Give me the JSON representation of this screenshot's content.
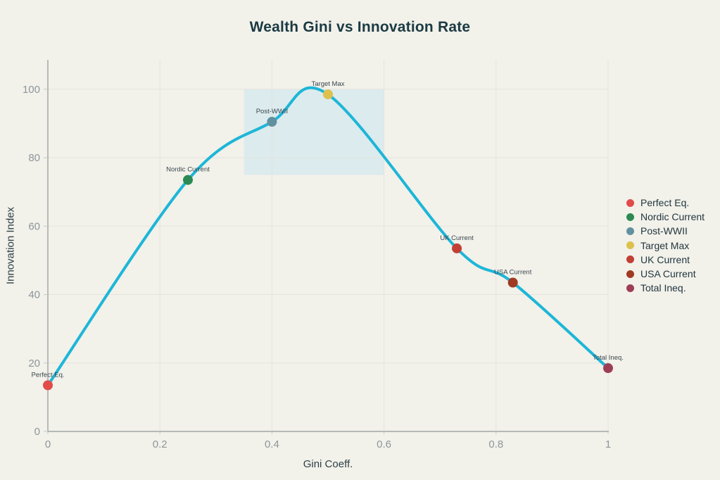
{
  "chart_data": {
    "type": "line",
    "title": "Wealth Gini vs Innovation Rate",
    "xlabel": "Gini Coeff.",
    "ylabel": "Innovation Index",
    "xlim": [
      0,
      1
    ],
    "ylim": [
      0,
      108.6
    ],
    "grid": true,
    "legend_position": "right",
    "background": "#f2f1ea",
    "line_color": "#1db6d8",
    "grid_color": "#e4e4dd",
    "axis_color": "#8f9898",
    "tick_color": "#c4c9c6",
    "tick_label_color": "#8d969c",
    "point_label_color": "#39474f",
    "title_color": "#1b3a43",
    "axis_title_color": "#2d3f47",
    "legend_text_color": "#223740",
    "x_ticks": [
      {
        "value": 0,
        "label": "0"
      },
      {
        "value": 0.2,
        "label": "0.2"
      },
      {
        "value": 0.4,
        "label": "0.4"
      },
      {
        "value": 0.6,
        "label": "0.6"
      },
      {
        "value": 0.8,
        "label": "0.8"
      },
      {
        "value": 1,
        "label": "1"
      }
    ],
    "y_ticks": [
      {
        "value": 0,
        "label": "0"
      },
      {
        "value": 20,
        "label": "20"
      },
      {
        "value": 40,
        "label": "40"
      },
      {
        "value": 60,
        "label": "60"
      },
      {
        "value": 80,
        "label": "80"
      },
      {
        "value": 100,
        "label": "100"
      }
    ],
    "shaded_region": {
      "x_min": 0.35,
      "x_max": 0.6,
      "y_min": 75,
      "y_max": 100,
      "color": "#dcebed"
    },
    "points": [
      {
        "label": "Perfect Eq.",
        "x": 0,
        "y": 13.5,
        "color": "#e24b4a"
      },
      {
        "label": "Nordic Current",
        "x": 0.25,
        "y": 73.5,
        "color": "#2b8a53"
      },
      {
        "label": "Post-WWII",
        "x": 0.4,
        "y": 90.5,
        "color": "#61909f"
      },
      {
        "label": "Target Max",
        "x": 0.5,
        "y": 98.5,
        "color": "#dcc14d"
      },
      {
        "label": "UK Current",
        "x": 0.73,
        "y": 53.5,
        "color": "#c23f35"
      },
      {
        "label": "USA Current",
        "x": 0.83,
        "y": 43.5,
        "color": "#a03a23"
      },
      {
        "label": "Total Ineq.",
        "x": 1,
        "y": 18.5,
        "color": "#9d3e56"
      }
    ],
    "legend": [
      {
        "label": "Perfect Eq.",
        "color": "#e24b4a"
      },
      {
        "label": "Nordic Current",
        "color": "#2b8a53"
      },
      {
        "label": "Post-WWII",
        "color": "#61909f"
      },
      {
        "label": "Target Max",
        "color": "#dcc14d"
      },
      {
        "label": "UK Current",
        "color": "#c23f35"
      },
      {
        "label": "USA Current",
        "color": "#a03a23"
      },
      {
        "label": "Total Ineq.",
        "color": "#9d3e56"
      }
    ]
  }
}
